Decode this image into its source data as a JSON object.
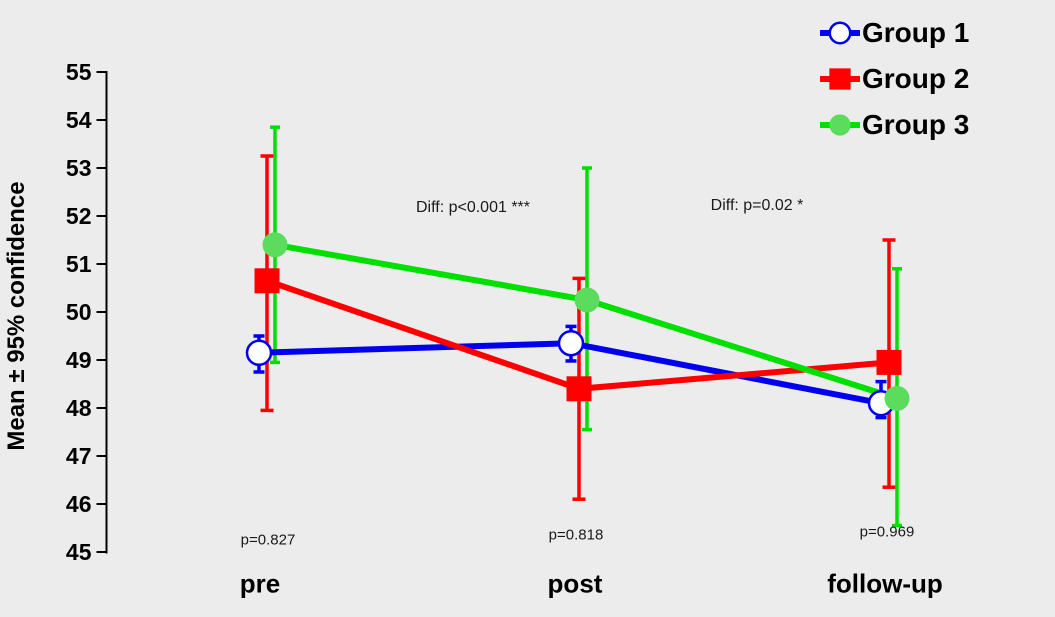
{
  "figure": {
    "background_color": "#ececec",
    "axis_color": "#000000"
  },
  "chart_data": {
    "type": "line",
    "title": "",
    "xlabel": "",
    "ylabel": "Mean ± 95% confidence",
    "categories": [
      "pre",
      "post",
      "follow-up"
    ],
    "ylim": [
      45,
      55
    ],
    "yticks": [
      45,
      46,
      47,
      48,
      49,
      50,
      51,
      52,
      53,
      54,
      55
    ],
    "grid": false,
    "legend_position": "top-right",
    "series": [
      {
        "name": "Group 1",
        "color": "#0000ee",
        "marker": "open-circle",
        "marker_fill": "#ffffff",
        "means": [
          49.15,
          49.35,
          48.1
        ],
        "ci_low": [
          48.75,
          48.98,
          47.8
        ],
        "ci_high": [
          49.5,
          49.7,
          48.55
        ]
      },
      {
        "name": "Group 2",
        "color": "#ff0000",
        "marker": "filled-square",
        "marker_fill": "#ff0000",
        "means": [
          50.65,
          48.4,
          48.95
        ],
        "ci_low": [
          47.95,
          46.1,
          46.35
        ],
        "ci_high": [
          53.25,
          50.7,
          51.5
        ]
      },
      {
        "name": "Group 3",
        "color": "#00e000",
        "marker": "filled-circle",
        "marker_fill": "#5cdc5c",
        "means": [
          51.4,
          50.25,
          48.2
        ],
        "ci_low": [
          48.95,
          47.55,
          45.55
        ],
        "ci_high": [
          53.85,
          53.0,
          50.9
        ]
      }
    ],
    "annotations": {
      "pre_post": {
        "text": "Diff: p<0.001 ***",
        "x": 473,
        "y": 208
      },
      "post_followup": {
        "text": "Diff: p=0.02 *",
        "x": 757,
        "y": 206
      }
    },
    "p_labels": {
      "pre": {
        "text": "p=0.827",
        "x": 268,
        "y": 540
      },
      "post": {
        "text": "p=0.818",
        "x": 576,
        "y": 535
      },
      "followup": {
        "text": "p=0.969",
        "x": 887,
        "y": 532
      }
    }
  }
}
